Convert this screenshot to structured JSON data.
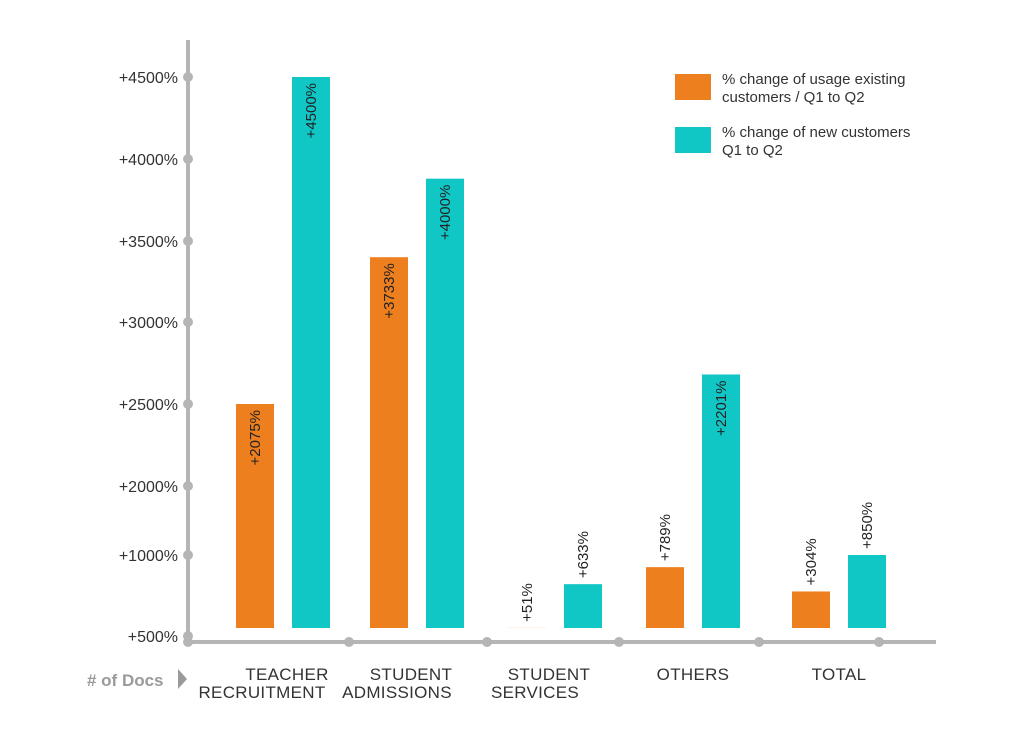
{
  "chart_data": {
    "type": "bar",
    "categories": [
      [
        "TEACHER",
        "RECRUITMENT"
      ],
      [
        "STUDENT",
        "ADMISSIONS"
      ],
      [
        "STUDENT",
        "SERVICES"
      ],
      [
        "OTHERS"
      ],
      [
        "TOTAL"
      ]
    ],
    "series": [
      {
        "name": "% change of usage existing customers / Q1 to Q2",
        "legend_lines": [
          "% change of usage existing",
          "customers / Q1 to Q2"
        ],
        "color": "#ee7f1f",
        "values": [
          2075,
          3733,
          51,
          789,
          304
        ],
        "labels": [
          "+2075%",
          "+3733%",
          "+51%",
          "+789%",
          "+304%"
        ]
      },
      {
        "name": "% change of new customers Q1 to Q2",
        "legend_lines": [
          "% change of new customers",
          "Q1 to Q2"
        ],
        "color": "#10c7c6",
        "values": [
          4500,
          4000,
          633,
          2201,
          850
        ],
        "labels": [
          "+4500%",
          "+4000%",
          "+633%",
          "+2201%",
          "+850%"
        ]
      }
    ],
    "bar_levels": [
      [
        2500,
        4500
      ],
      [
        3400,
        3880
      ],
      [
        550,
        820
      ],
      [
        925,
        2680
      ],
      [
        775,
        1000
      ]
    ],
    "y_ticks": [
      {
        "value": 4500,
        "label": "+4500%"
      },
      {
        "value": 4000,
        "label": "+4000%"
      },
      {
        "value": 3500,
        "label": "+3500%"
      },
      {
        "value": 3000,
        "label": "+3000%"
      },
      {
        "value": 2500,
        "label": "+2500%"
      },
      {
        "value": 2000,
        "label": "+2000%"
      },
      {
        "value": 1000,
        "label": "+1000%"
      },
      {
        "value": 500,
        "label": "+500%"
      }
    ],
    "xlabel": "# of Docs",
    "axis_color": "#b5b5b5",
    "grid": false,
    "legend_position": "top-right"
  }
}
